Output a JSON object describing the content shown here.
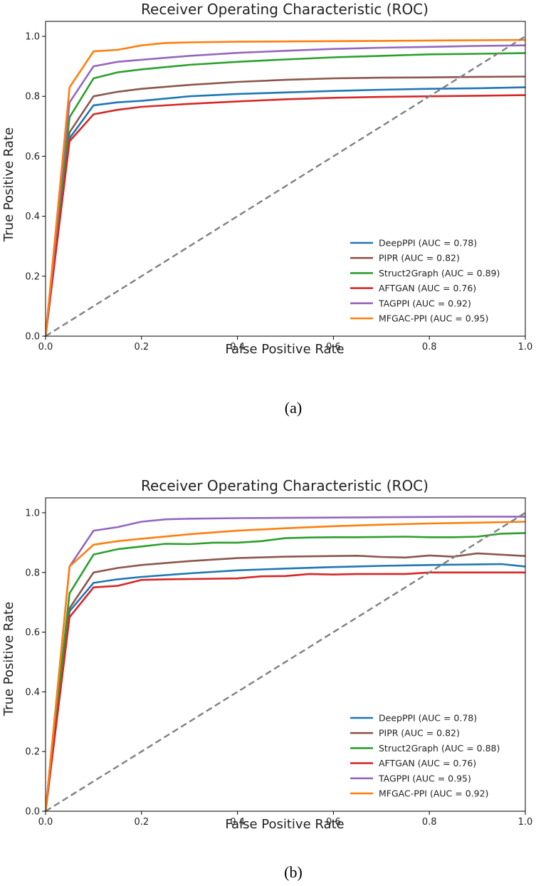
{
  "chart_data": [
    {
      "type": "line",
      "caption": "(a)",
      "title": "Receiver Operating Characteristic (ROC)",
      "xlabel": "False Positive Rate",
      "ylabel": "True Positive Rate",
      "xlim": [
        0,
        1
      ],
      "ylim": [
        0,
        1.05
      ],
      "xticks": [
        "0.0",
        "0.2",
        "0.4",
        "0.6",
        "0.8",
        "1.0"
      ],
      "yticks": [
        "0.0",
        "0.2",
        "0.4",
        "0.6",
        "0.8",
        "1.0"
      ],
      "legend_position": "lower-right",
      "diagonal": {
        "x": [
          0,
          1
        ],
        "y": [
          0,
          1
        ],
        "color": "#808080",
        "style": "dashed"
      },
      "series": [
        {
          "name": "DeepPPI",
          "legend": "DeepPPI (AUC = 0.78)",
          "color": "#1f77b4",
          "x": [
            0,
            0.05,
            0.1,
            0.15,
            0.2,
            0.3,
            0.4,
            0.5,
            0.6,
            0.7,
            0.8,
            0.9,
            1.0
          ],
          "y": [
            0,
            0.66,
            0.77,
            0.78,
            0.785,
            0.8,
            0.808,
            0.813,
            0.818,
            0.822,
            0.825,
            0.827,
            0.83
          ]
        },
        {
          "name": "PIPR",
          "legend": "PIPR (AUC = 0.82)",
          "color": "#8c564b",
          "x": [
            0,
            0.05,
            0.1,
            0.15,
            0.2,
            0.3,
            0.4,
            0.5,
            0.6,
            0.7,
            0.8,
            0.9,
            1.0
          ],
          "y": [
            0,
            0.68,
            0.8,
            0.815,
            0.825,
            0.838,
            0.848,
            0.855,
            0.86,
            0.862,
            0.863,
            0.865,
            0.866
          ]
        },
        {
          "name": "Struct2Graph",
          "legend": "Struct2Graph (AUC = 0.89)",
          "color": "#2ca02c",
          "x": [
            0,
            0.05,
            0.1,
            0.15,
            0.2,
            0.3,
            0.4,
            0.5,
            0.6,
            0.7,
            0.8,
            0.9,
            1.0
          ],
          "y": [
            0,
            0.73,
            0.86,
            0.88,
            0.89,
            0.905,
            0.915,
            0.923,
            0.93,
            0.935,
            0.94,
            0.942,
            0.944
          ]
        },
        {
          "name": "AFTGAN",
          "legend": "AFTGAN (AUC = 0.76)",
          "color": "#d62728",
          "x": [
            0,
            0.05,
            0.1,
            0.15,
            0.2,
            0.3,
            0.4,
            0.5,
            0.6,
            0.7,
            0.8,
            0.9,
            1.0
          ],
          "y": [
            0,
            0.65,
            0.74,
            0.755,
            0.765,
            0.775,
            0.783,
            0.79,
            0.795,
            0.798,
            0.8,
            0.802,
            0.804
          ]
        },
        {
          "name": "TAGPPI",
          "legend": "TAGPPI (AUC = 0.92)",
          "color": "#9467bd",
          "x": [
            0,
            0.05,
            0.1,
            0.15,
            0.2,
            0.3,
            0.4,
            0.5,
            0.6,
            0.7,
            0.8,
            0.9,
            1.0
          ],
          "y": [
            0,
            0.78,
            0.9,
            0.915,
            0.922,
            0.935,
            0.945,
            0.952,
            0.958,
            0.962,
            0.965,
            0.968,
            0.97
          ]
        },
        {
          "name": "MFGAC-PPI",
          "legend": "MFGAC-PPI (AUC = 0.95)",
          "color": "#ff7f0e",
          "x": [
            0,
            0.05,
            0.1,
            0.15,
            0.2,
            0.25,
            0.3,
            0.4,
            0.5,
            0.6,
            0.7,
            0.8,
            0.9,
            1.0
          ],
          "y": [
            0,
            0.83,
            0.95,
            0.955,
            0.97,
            0.978,
            0.98,
            0.982,
            0.983,
            0.984,
            0.985,
            0.986,
            0.987,
            0.988
          ]
        }
      ]
    },
    {
      "type": "line",
      "caption": "(b)",
      "title": "Receiver Operating Characteristic (ROC)",
      "xlabel": "False Positive Rate",
      "ylabel": "True Positive Rate",
      "xlim": [
        0,
        1
      ],
      "ylim": [
        0,
        1.05
      ],
      "xticks": [
        "0.0",
        "0.2",
        "0.4",
        "0.6",
        "0.8",
        "1.0"
      ],
      "yticks": [
        "0.0",
        "0.2",
        "0.4",
        "0.6",
        "0.8",
        "1.0"
      ],
      "legend_position": "lower-right",
      "diagonal": {
        "x": [
          0,
          1
        ],
        "y": [
          0,
          1
        ],
        "color": "#808080",
        "style": "dashed"
      },
      "series": [
        {
          "name": "DeepPPI",
          "legend": "DeepPPI (AUC = 0.78)",
          "color": "#1f77b4",
          "x": [
            0,
            0.05,
            0.1,
            0.15,
            0.2,
            0.3,
            0.4,
            0.5,
            0.6,
            0.7,
            0.8,
            0.9,
            0.95,
            1.0
          ],
          "y": [
            0,
            0.67,
            0.765,
            0.777,
            0.785,
            0.797,
            0.807,
            0.813,
            0.818,
            0.822,
            0.825,
            0.827,
            0.828,
            0.82
          ]
        },
        {
          "name": "PIPR",
          "legend": "PIPR (AUC = 0.82)",
          "color": "#8c564b",
          "x": [
            0,
            0.05,
            0.1,
            0.15,
            0.2,
            0.3,
            0.4,
            0.5,
            0.6,
            0.65,
            0.7,
            0.75,
            0.8,
            0.85,
            0.9,
            1.0
          ],
          "y": [
            0,
            0.68,
            0.8,
            0.815,
            0.825,
            0.838,
            0.848,
            0.853,
            0.855,
            0.856,
            0.852,
            0.85,
            0.857,
            0.853,
            0.864,
            0.855
          ]
        },
        {
          "name": "Struct2Graph",
          "legend": "Struct2Graph (AUC = 0.88)",
          "color": "#2ca02c",
          "x": [
            0,
            0.05,
            0.1,
            0.15,
            0.2,
            0.25,
            0.3,
            0.35,
            0.4,
            0.45,
            0.5,
            0.55,
            0.6,
            0.65,
            0.7,
            0.75,
            0.8,
            0.85,
            0.9,
            0.95,
            1.0
          ],
          "y": [
            0,
            0.73,
            0.86,
            0.878,
            0.887,
            0.896,
            0.895,
            0.9,
            0.9,
            0.905,
            0.915,
            0.917,
            0.918,
            0.918,
            0.919,
            0.92,
            0.918,
            0.918,
            0.92,
            0.93,
            0.932
          ]
        },
        {
          "name": "AFTGAN",
          "legend": "AFTGAN (AUC = 0.76)",
          "color": "#d62728",
          "x": [
            0,
            0.05,
            0.1,
            0.15,
            0.2,
            0.25,
            0.3,
            0.4,
            0.45,
            0.5,
            0.55,
            0.6,
            0.65,
            0.7,
            0.75,
            0.8,
            0.9,
            1.0
          ],
          "y": [
            0,
            0.65,
            0.75,
            0.755,
            0.775,
            0.777,
            0.778,
            0.78,
            0.787,
            0.788,
            0.795,
            0.793,
            0.795,
            0.795,
            0.795,
            0.8,
            0.8,
            0.8
          ]
        },
        {
          "name": "TAGPPI",
          "legend": "TAGPPI (AUC = 0.95)",
          "color": "#9467bd",
          "x": [
            0,
            0.05,
            0.1,
            0.15,
            0.2,
            0.25,
            0.3,
            0.4,
            0.5,
            0.6,
            0.7,
            0.8,
            0.9,
            1.0
          ],
          "y": [
            0,
            0.82,
            0.94,
            0.952,
            0.97,
            0.978,
            0.98,
            0.982,
            0.983,
            0.984,
            0.985,
            0.986,
            0.987,
            0.987
          ]
        },
        {
          "name": "MFGAC-PPI",
          "legend": "MFGAC-PPI (AUC = 0.92)",
          "color": "#ff7f0e",
          "x": [
            0,
            0.05,
            0.1,
            0.15,
            0.2,
            0.3,
            0.4,
            0.5,
            0.6,
            0.7,
            0.8,
            0.9,
            1.0
          ],
          "y": [
            0,
            0.82,
            0.893,
            0.905,
            0.913,
            0.928,
            0.94,
            0.948,
            0.955,
            0.96,
            0.964,
            0.967,
            0.97
          ]
        }
      ]
    }
  ]
}
